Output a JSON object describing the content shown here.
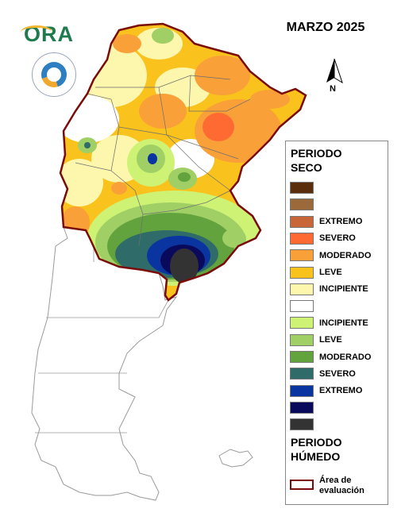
{
  "title": "MARZO 2025",
  "logo_text": "ORA",
  "north_label": "N",
  "legend": {
    "dry_header": "PERIODO SECO",
    "wet_header": "PERIODO HÚMEDO",
    "categories": [
      {
        "label": "",
        "color": "#5a2d0c"
      },
      {
        "label": "",
        "color": "#9c6a3a"
      },
      {
        "label": "EXTREMO",
        "color": "#c8663a"
      },
      {
        "label": "SEVERO",
        "color": "#ff6a33"
      },
      {
        "label": "MODERADO",
        "color": "#f9a039"
      },
      {
        "label": "LEVE",
        "color": "#f9c21c"
      },
      {
        "label": "INCIPIENTE",
        "color": "#fdf6ad"
      },
      {
        "label": "",
        "color": "#ffffff"
      },
      {
        "label": "INCIPIENTE",
        "color": "#cef374"
      },
      {
        "label": "LEVE",
        "color": "#a0cf66"
      },
      {
        "label": "MODERADO",
        "color": "#62a33e"
      },
      {
        "label": "SEVERO",
        "color": "#2f6b69"
      },
      {
        "label": "EXTREMO",
        "color": "#0a35a0"
      },
      {
        "label": "",
        "color": "#0a0a5c"
      },
      {
        "label": "",
        "color": "#333333"
      }
    ],
    "area_label_line1": "Área de",
    "area_label_line2": "evaluación",
    "area_color": "#7a0b0b"
  }
}
